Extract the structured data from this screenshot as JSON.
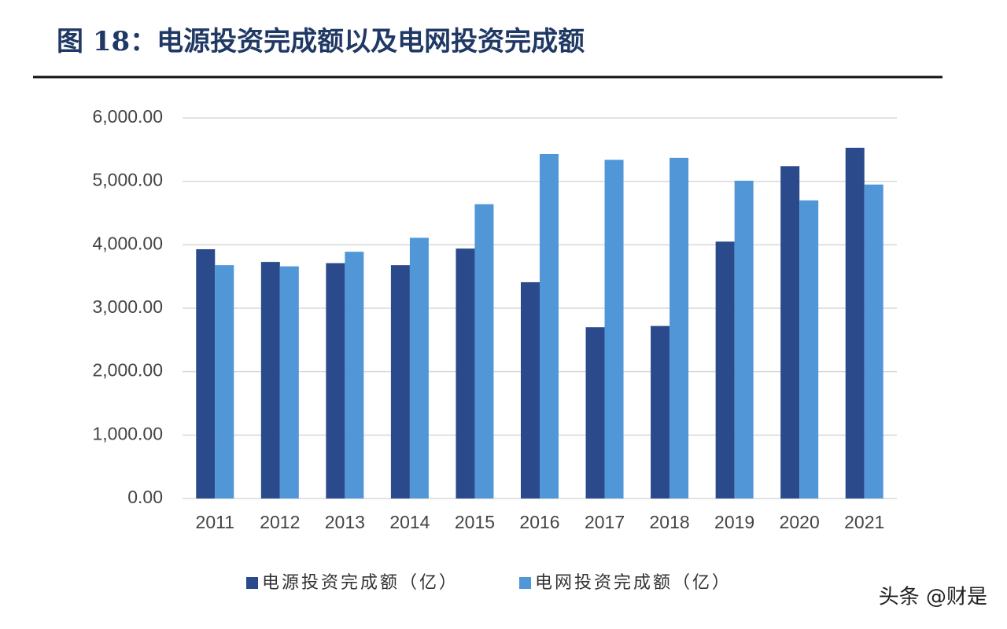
{
  "chart_data": {
    "type": "bar",
    "title": "图 18：电源投资完成额以及电网投资完成额",
    "categories": [
      "2011",
      "2012",
      "2013",
      "2014",
      "2015",
      "2016",
      "2017",
      "2018",
      "2019",
      "2020",
      "2021"
    ],
    "series": [
      {
        "name": "电源投资完成额（亿）",
        "color": "#2b4a8b",
        "values": [
          3930,
          3730,
          3710,
          3680,
          3940,
          3410,
          2700,
          2720,
          4050,
          5240,
          5530
        ]
      },
      {
        "name": "电网投资完成额（亿）",
        "color": "#5196d6",
        "values": [
          3680,
          3660,
          3890,
          4110,
          4640,
          5430,
          5340,
          5370,
          5010,
          4700,
          4950
        ]
      }
    ],
    "ylim": [
      0,
      6000
    ],
    "yticks": [
      {
        "value": 0,
        "label": "0.00"
      },
      {
        "value": 1000,
        "label": "1,000.00"
      },
      {
        "value": 2000,
        "label": "2,000.00"
      },
      {
        "value": 3000,
        "label": "3,000.00"
      },
      {
        "value": 4000,
        "label": "4,000.00"
      },
      {
        "value": 5000,
        "label": "5,000.00"
      },
      {
        "value": 6000,
        "label": "6,000.00"
      }
    ],
    "grid": true,
    "legend": "bottom",
    "watermark": "头条 @财是"
  }
}
